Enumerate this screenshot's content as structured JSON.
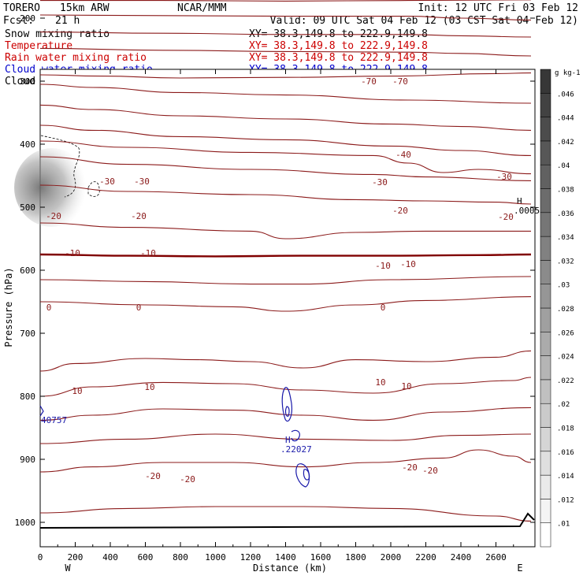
{
  "header": {
    "model": "TORERO",
    "resolution": "15km ARW",
    "center": "NCAR/MMM",
    "init": "Init: 12 UTC Fri 03 Feb 12",
    "fcst_label": "Fcst:",
    "fcst_value": "21 h",
    "valid": "Valid: 09 UTC Sat 04 Feb 12 (03 CST Sat 04 Feb 12)"
  },
  "fields": [
    {
      "label": "Snow mixing ratio",
      "xy": "XY=  38.3,149.8 to 222.9,149.8",
      "color": "#000000"
    },
    {
      "label": "Temperature",
      "xy": "XY=  38.3,149.8 to 222.9,149.8",
      "color": "#cc0000"
    },
    {
      "label": "Rain water mixing ratio",
      "xy": "XY=  38.3,149.8 to 222.9,149.8",
      "color": "#cc0000"
    },
    {
      "label": "Cloud water mixing ratio",
      "xy": "XY=  38.3,149.8 to 222.9,149.8",
      "color": "#0000cc"
    },
    {
      "label": "Cloud ice mixing ratio",
      "xy": "XY=  38.3,149.8 to 222.9,149.8",
      "color": "#000000"
    }
  ],
  "chart_data": {
    "type": "contour cross-section",
    "xlabel": "Distance (km)",
    "ylabel": "Pressure (hPa)",
    "xlim": [
      0,
      2800
    ],
    "ylim": [
      1050,
      90
    ],
    "x_ticks": [
      0,
      200,
      400,
      600,
      800,
      1000,
      1200,
      1400,
      1600,
      1800,
      2000,
      2200,
      2400,
      2600
    ],
    "y_ticks": [
      200,
      300,
      400,
      500,
      600,
      700,
      800,
      900,
      1000
    ],
    "x_end_labels": [
      "W",
      "E"
    ],
    "temperature_contours": [
      {
        "value": -70,
        "x": [
          0,
          700,
          1400,
          2100,
          2800
        ],
        "y": [
          103,
          103,
          104,
          103,
          103
        ]
      },
      {
        "value": null,
        "x": [
          0,
          700,
          1400,
          2100,
          2800
        ],
        "y": [
          118,
          118,
          119,
          118,
          117
        ]
      },
      {
        "value": null,
        "x": [
          0,
          700,
          1400,
          2100,
          2800
        ],
        "y": [
          143,
          143,
          144,
          143,
          142
        ]
      },
      {
        "value": null,
        "x": [
          0,
          700,
          1400,
          2100,
          2800
        ],
        "y": [
          172,
          172,
          173,
          172,
          171
        ]
      },
      {
        "value": -40,
        "x": [
          0,
          700,
          1400,
          2100,
          2400,
          2800
        ],
        "y": [
          195,
          196,
          197,
          197,
          200,
          203
        ]
      },
      {
        "value": null,
        "x": [
          0,
          700,
          1400,
          2100,
          2400,
          2800
        ],
        "y": [
          222,
          224,
          226,
          226,
          228,
          230
        ]
      },
      {
        "value": null,
        "x": [
          0,
          700,
          1400,
          2100,
          2400,
          2800
        ],
        "y": [
          248,
          251,
          253,
          254,
          256,
          260
        ]
      },
      {
        "value": -30,
        "x": [
          0,
          350,
          800,
          1400,
          2000,
          2600,
          2800
        ],
        "y": [
          290,
          292,
          295,
          294,
          292,
          288,
          287
        ]
      },
      {
        "value": null,
        "x": [
          0,
          300,
          800,
          1400,
          2100,
          2800
        ],
        "y": [
          305,
          310,
          318,
          322,
          330,
          335
        ]
      },
      {
        "value": -20,
        "x": [
          0,
          300,
          800,
          1400,
          2000,
          2400,
          2800
        ],
        "y": [
          338,
          345,
          355,
          360,
          368,
          372,
          378
        ]
      },
      {
        "value": null,
        "x": [
          0,
          300,
          800,
          1400,
          2000,
          2400,
          2800
        ],
        "y": [
          370,
          378,
          388,
          393,
          403,
          410,
          418
        ]
      },
      {
        "value": null,
        "x": [
          0,
          500,
          1200,
          1900,
          2100,
          2300,
          2500,
          2800
        ],
        "y": [
          395,
          405,
          413,
          418,
          430,
          445,
          440,
          447
        ]
      },
      {
        "value": -10,
        "x": [
          0,
          500,
          1200,
          1900,
          2200,
          2800
        ],
        "y": [
          420,
          432,
          440,
          448,
          452,
          458
        ]
      },
      {
        "value": null,
        "x": [
          0,
          500,
          1200,
          1800,
          2200,
          2600,
          2800
        ],
        "y": [
          465,
          475,
          480,
          488,
          490,
          492,
          495
        ]
      },
      {
        "value": null,
        "x": [
          0,
          500,
          1200,
          1400,
          1800,
          2200,
          2800
        ],
        "y": [
          525,
          532,
          538,
          550,
          540,
          538,
          538
        ]
      },
      {
        "value": 0,
        "x": [
          0,
          500,
          1000,
          1500,
          2000,
          2500,
          2800
        ],
        "y": [
          575,
          577,
          578,
          577,
          577,
          576,
          575
        ]
      },
      {
        "value": null,
        "x": [
          0,
          600,
          1200,
          1500,
          2000,
          2800
        ],
        "y": [
          615,
          618,
          622,
          622,
          615,
          610
        ]
      },
      {
        "value": null,
        "x": [
          0,
          600,
          1100,
          1400,
          1800,
          2200,
          2800
        ],
        "y": [
          650,
          655,
          658,
          665,
          655,
          648,
          642
        ]
      },
      {
        "value": 10,
        "x": [
          0,
          200,
          600,
          900,
          1200,
          1500,
          1800,
          2200,
          2600,
          2800
        ],
        "y": [
          760,
          748,
          740,
          742,
          745,
          755,
          742,
          745,
          738,
          728
        ]
      },
      {
        "value": null,
        "x": [
          0,
          300,
          700,
          1100,
          1500,
          1900,
          2300,
          2700,
          2800
        ],
        "y": [
          800,
          785,
          778,
          780,
          790,
          795,
          780,
          775,
          770
        ]
      },
      {
        "value": null,
        "x": [
          0,
          300,
          700,
          1100,
          1500,
          1900,
          2300,
          2800
        ],
        "y": [
          838,
          830,
          820,
          822,
          830,
          838,
          825,
          818
        ]
      },
      {
        "value": null,
        "x": [
          0,
          500,
          1000,
          1500,
          2000,
          2400,
          2800
        ],
        "y": [
          875,
          868,
          860,
          868,
          870,
          862,
          860
        ]
      },
      {
        "value": -20,
        "x": [
          0,
          300,
          700,
          1100,
          1500,
          1900,
          2300,
          2500,
          2700,
          2800
        ],
        "y": [
          920,
          912,
          905,
          905,
          912,
          905,
          898,
          885,
          895,
          905
        ]
      },
      {
        "value": null,
        "x": [
          0,
          500,
          1000,
          1500,
          2000,
          2600,
          2800
        ],
        "y": [
          985,
          978,
          975,
          975,
          978,
          990,
          998
        ]
      }
    ],
    "temperature_labels": [
      "-70",
      "-70",
      "-40",
      "-30",
      "-30",
      "-30",
      "-30",
      "-20",
      "-20",
      "-20",
      "-20",
      "-10",
      "-10",
      "-10",
      "-10",
      "0",
      "0",
      "0",
      "10",
      "10",
      "10",
      "10",
      "-20",
      "-20",
      "-20",
      "-20"
    ],
    "cloud_water_annotations": [
      "40757",
      "H",
      ".22027"
    ],
    "ice_annotations": [
      "H",
      ".0005"
    ],
    "colorbar": {
      "unit": "g kg-1",
      "ticks": [
        ".01",
        ".012",
        ".014",
        ".016",
        ".018",
        ".02",
        ".022",
        ".024",
        ".026",
        ".028",
        ".03",
        ".032",
        ".034",
        ".036",
        ".038",
        ".04",
        ".042",
        ".044",
        ".046"
      ]
    }
  }
}
